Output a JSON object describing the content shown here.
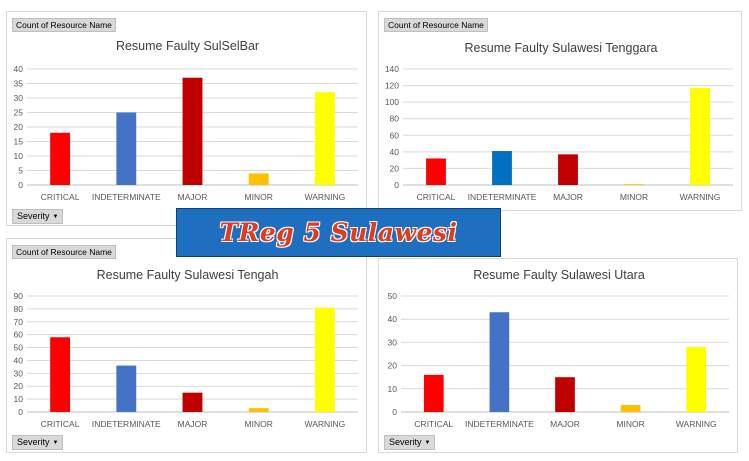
{
  "banner": {
    "text": "TReg 5 Sulawesi"
  },
  "pivot": {
    "value_field": "Count of Resource Name",
    "filter_field": "Severity"
  },
  "chart_data": [
    {
      "type": "bar",
      "title": "Resume Faulty SulSelBar",
      "categories": [
        "CRITICAL",
        "INDETERMINATE",
        "MAJOR",
        "MINOR",
        "WARNING"
      ],
      "values": [
        18,
        25,
        37,
        4,
        32
      ],
      "colors": [
        "#ff0000",
        "#4472c4",
        "#c00000",
        "#ffc000",
        "#ffff00"
      ],
      "ylim": [
        0,
        40
      ],
      "yticks": [
        0,
        5,
        10,
        15,
        20,
        25,
        30,
        35,
        40
      ],
      "grid": true,
      "xlabel": "",
      "ylabel": ""
    },
    {
      "type": "bar",
      "title": "Resume Faulty Sulawesi Tenggara",
      "categories": [
        "CRITICAL",
        "INDETERMINATE",
        "MAJOR",
        "MINOR",
        "WARNING"
      ],
      "values": [
        32,
        41,
        37,
        1,
        117
      ],
      "colors": [
        "#ff0000",
        "#0070c0",
        "#c00000",
        "#ffc000",
        "#ffff00"
      ],
      "ylim": [
        0,
        140
      ],
      "yticks": [
        0,
        20,
        40,
        60,
        80,
        100,
        120,
        140
      ],
      "grid": true,
      "xlabel": "",
      "ylabel": ""
    },
    {
      "type": "bar",
      "title": "Resume Faulty Sulawesi Tengah",
      "categories": [
        "CRITICAL",
        "INDETERMINATE",
        "MAJOR",
        "MINOR",
        "WARNING"
      ],
      "values": [
        58,
        36,
        15,
        3,
        81
      ],
      "colors": [
        "#ff0000",
        "#4472c4",
        "#c00000",
        "#ffc000",
        "#ffff00"
      ],
      "ylim": [
        0,
        90
      ],
      "yticks": [
        0,
        10,
        20,
        30,
        40,
        50,
        60,
        70,
        80,
        90
      ],
      "grid": true,
      "xlabel": "",
      "ylabel": ""
    },
    {
      "type": "bar",
      "title": "Resume Faulty Sulawesi Utara",
      "categories": [
        "CRITICAL",
        "INDETERMINATE",
        "MAJOR",
        "MINOR",
        "WARNING"
      ],
      "values": [
        16,
        43,
        15,
        3,
        28
      ],
      "colors": [
        "#ff0000",
        "#4472c4",
        "#c00000",
        "#ffc000",
        "#ffff00"
      ],
      "ylim": [
        0,
        50
      ],
      "yticks": [
        0,
        10,
        20,
        30,
        40,
        50
      ],
      "grid": true,
      "xlabel": "",
      "ylabel": ""
    }
  ]
}
